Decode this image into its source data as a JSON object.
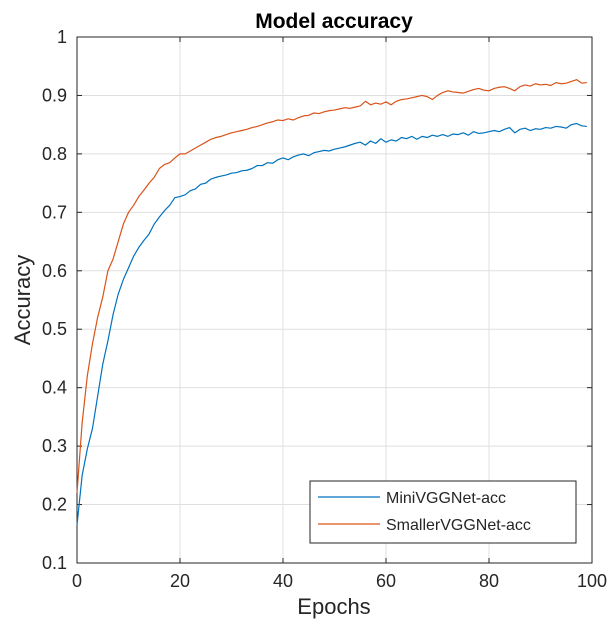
{
  "chart_data": {
    "type": "line",
    "title": "Model accuracy",
    "xlabel": "Epochs",
    "ylabel": "Accuracy",
    "xlim": [
      0,
      100
    ],
    "ylim": [
      0.1,
      1
    ],
    "xticks": [
      0,
      20,
      40,
      60,
      80,
      100
    ],
    "yticks": [
      0.1,
      0.2,
      0.3,
      0.4,
      0.5,
      0.6,
      0.7,
      0.8,
      0.9,
      1
    ],
    "xtick_labels": [
      "0",
      "20",
      "40",
      "60",
      "80",
      "100"
    ],
    "ytick_labels": [
      "0.1",
      "0.2",
      "0.3",
      "0.4",
      "0.5",
      "0.6",
      "0.7",
      "0.8",
      "0.9",
      "1"
    ],
    "grid": true,
    "legend_position": "bottom-right",
    "series": [
      {
        "name": "MiniVGGNet-acc",
        "color": "#0072BD",
        "x": [
          0,
          1,
          2,
          3,
          4,
          5,
          6,
          7,
          8,
          9,
          10,
          11,
          12,
          13,
          14,
          15,
          16,
          17,
          18,
          19,
          20,
          21,
          22,
          23,
          24,
          25,
          26,
          27,
          28,
          29,
          30,
          31,
          32,
          33,
          34,
          35,
          36,
          37,
          38,
          39,
          40,
          41,
          42,
          43,
          44,
          45,
          46,
          47,
          48,
          49,
          50,
          51,
          52,
          53,
          54,
          55,
          56,
          57,
          58,
          59,
          60,
          61,
          62,
          63,
          64,
          65,
          66,
          67,
          68,
          69,
          70,
          71,
          72,
          73,
          74,
          75,
          76,
          77,
          78,
          79,
          80,
          81,
          82,
          83,
          84,
          85,
          86,
          87,
          88,
          89,
          90,
          91,
          92,
          93,
          94,
          95,
          96,
          97,
          98,
          99
        ],
        "y": [
          0.165,
          0.25,
          0.295,
          0.33,
          0.385,
          0.44,
          0.48,
          0.525,
          0.56,
          0.585,
          0.605,
          0.625,
          0.64,
          0.652,
          0.663,
          0.68,
          0.692,
          0.703,
          0.712,
          0.725,
          0.727,
          0.73,
          0.737,
          0.74,
          0.748,
          0.75,
          0.757,
          0.76,
          0.762,
          0.764,
          0.767,
          0.768,
          0.771,
          0.772,
          0.775,
          0.78,
          0.78,
          0.785,
          0.784,
          0.79,
          0.793,
          0.79,
          0.795,
          0.798,
          0.8,
          0.797,
          0.802,
          0.804,
          0.806,
          0.805,
          0.808,
          0.81,
          0.812,
          0.815,
          0.818,
          0.82,
          0.815,
          0.822,
          0.818,
          0.826,
          0.82,
          0.824,
          0.822,
          0.828,
          0.826,
          0.83,
          0.825,
          0.83,
          0.828,
          0.832,
          0.83,
          0.833,
          0.83,
          0.834,
          0.833,
          0.836,
          0.832,
          0.838,
          0.835,
          0.836,
          0.838,
          0.84,
          0.838,
          0.842,
          0.845,
          0.836,
          0.842,
          0.844,
          0.84,
          0.843,
          0.842,
          0.845,
          0.844,
          0.847,
          0.846,
          0.844,
          0.85,
          0.852,
          0.848,
          0.847
        ]
      },
      {
        "name": "SmallerVGGNet-acc",
        "color": "#D95319",
        "x": [
          0,
          1,
          2,
          3,
          4,
          5,
          6,
          7,
          8,
          9,
          10,
          11,
          12,
          13,
          14,
          15,
          16,
          17,
          18,
          19,
          20,
          21,
          22,
          23,
          24,
          25,
          26,
          27,
          28,
          29,
          30,
          31,
          32,
          33,
          34,
          35,
          36,
          37,
          38,
          39,
          40,
          41,
          42,
          43,
          44,
          45,
          46,
          47,
          48,
          49,
          50,
          51,
          52,
          53,
          54,
          55,
          56,
          57,
          58,
          59,
          60,
          61,
          62,
          63,
          64,
          65,
          66,
          67,
          68,
          69,
          70,
          71,
          72,
          73,
          74,
          75,
          76,
          77,
          78,
          79,
          80,
          81,
          82,
          83,
          84,
          85,
          86,
          87,
          88,
          89,
          90,
          91,
          92,
          93,
          94,
          95,
          96,
          97,
          98,
          99
        ],
        "y": [
          0.22,
          0.34,
          0.42,
          0.475,
          0.52,
          0.555,
          0.6,
          0.62,
          0.65,
          0.68,
          0.7,
          0.712,
          0.727,
          0.738,
          0.75,
          0.76,
          0.775,
          0.782,
          0.785,
          0.793,
          0.8,
          0.8,
          0.805,
          0.81,
          0.815,
          0.82,
          0.825,
          0.828,
          0.83,
          0.833,
          0.836,
          0.838,
          0.84,
          0.842,
          0.845,
          0.847,
          0.85,
          0.853,
          0.855,
          0.858,
          0.857,
          0.86,
          0.858,
          0.862,
          0.865,
          0.866,
          0.87,
          0.869,
          0.872,
          0.874,
          0.875,
          0.877,
          0.879,
          0.878,
          0.88,
          0.882,
          0.89,
          0.884,
          0.887,
          0.885,
          0.889,
          0.884,
          0.89,
          0.893,
          0.894,
          0.896,
          0.898,
          0.9,
          0.898,
          0.893,
          0.9,
          0.905,
          0.908,
          0.906,
          0.905,
          0.904,
          0.907,
          0.91,
          0.912,
          0.909,
          0.908,
          0.912,
          0.914,
          0.915,
          0.912,
          0.908,
          0.915,
          0.918,
          0.916,
          0.92,
          0.918,
          0.919,
          0.917,
          0.922,
          0.92,
          0.921,
          0.924,
          0.927,
          0.921,
          0.922
        ]
      }
    ]
  }
}
